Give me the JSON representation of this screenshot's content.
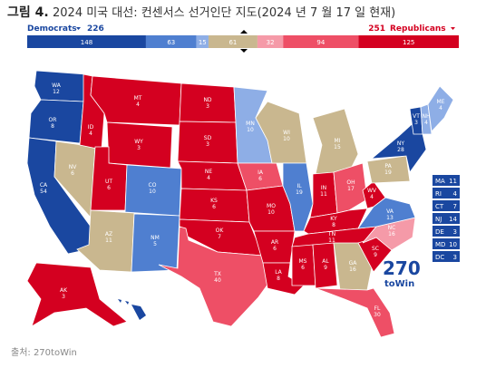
{
  "header": {
    "figure": "그림 4.",
    "title": "2024 미국 대선: 컨센서스 선거인단 지도(2024 년 7 월 17 일 현재)"
  },
  "summary": {
    "dem_label": "Democrats",
    "dem_total": 226,
    "rep_total": 251,
    "rep_label": "Republicans",
    "segments": [
      {
        "value": 148,
        "color": "#1a47a0"
      },
      {
        "value": 63,
        "color": "#4f7fd0"
      },
      {
        "value": 15,
        "color": "#8eaee6"
      },
      {
        "value": 61,
        "color": "#c9b78f"
      },
      {
        "value": 32,
        "color": "#f59aa8"
      },
      {
        "value": 94,
        "color": "#ee4f66"
      },
      {
        "value": 125,
        "color": "#d40020"
      }
    ]
  },
  "states": [
    {
      "abbr": "WA",
      "ev": 12,
      "color": "#1a47a0"
    },
    {
      "abbr": "OR",
      "ev": 8,
      "color": "#1a47a0"
    },
    {
      "abbr": "CA",
      "ev": 54,
      "color": "#1a47a0"
    },
    {
      "abbr": "NV",
      "ev": 6,
      "color": "#c9b78f"
    },
    {
      "abbr": "ID",
      "ev": 4,
      "color": "#d40020"
    },
    {
      "abbr": "MT",
      "ev": 4,
      "color": "#d40020"
    },
    {
      "abbr": "WY",
      "ev": 3,
      "color": "#d40020"
    },
    {
      "abbr": "UT",
      "ev": 6,
      "color": "#d40020"
    },
    {
      "abbr": "AZ",
      "ev": 11,
      "color": "#c9b78f"
    },
    {
      "abbr": "CO",
      "ev": 10,
      "color": "#4f7fd0"
    },
    {
      "abbr": "NM",
      "ev": 5,
      "color": "#4f7fd0"
    },
    {
      "abbr": "ND",
      "ev": 3,
      "color": "#d40020"
    },
    {
      "abbr": "SD",
      "ev": 3,
      "color": "#d40020"
    },
    {
      "abbr": "NE",
      "ev": 4,
      "color": "#d40020"
    },
    {
      "abbr": "KS",
      "ev": 6,
      "color": "#d40020"
    },
    {
      "abbr": "OK",
      "ev": 7,
      "color": "#d40020"
    },
    {
      "abbr": "TX",
      "ev": 40,
      "color": "#ee4f66"
    },
    {
      "abbr": "MN",
      "ev": 10,
      "color": "#8eaee6"
    },
    {
      "abbr": "IA",
      "ev": 6,
      "color": "#ee4f66"
    },
    {
      "abbr": "MO",
      "ev": 10,
      "color": "#d40020"
    },
    {
      "abbr": "AR",
      "ev": 6,
      "color": "#d40020"
    },
    {
      "abbr": "LA",
      "ev": 8,
      "color": "#d40020"
    },
    {
      "abbr": "WI",
      "ev": 10,
      "color": "#c9b78f"
    },
    {
      "abbr": "IL",
      "ev": 19,
      "color": "#4f7fd0"
    },
    {
      "abbr": "MI",
      "ev": 15,
      "color": "#c9b78f"
    },
    {
      "abbr": "IN",
      "ev": 11,
      "color": "#d40020"
    },
    {
      "abbr": "OH",
      "ev": 17,
      "color": "#ee4f66"
    },
    {
      "abbr": "KY",
      "ev": 8,
      "color": "#d40020"
    },
    {
      "abbr": "TN",
      "ev": 11,
      "color": "#d40020"
    },
    {
      "abbr": "MS",
      "ev": 6,
      "color": "#d40020"
    },
    {
      "abbr": "AL",
      "ev": 9,
      "color": "#d40020"
    },
    {
      "abbr": "GA",
      "ev": 16,
      "color": "#c9b78f"
    },
    {
      "abbr": "FL",
      "ev": 30,
      "color": "#ee4f66"
    },
    {
      "abbr": "SC",
      "ev": 9,
      "color": "#d40020"
    },
    {
      "abbr": "NC",
      "ev": 16,
      "color": "#f59aa8"
    },
    {
      "abbr": "VA",
      "ev": 13,
      "color": "#4f7fd0"
    },
    {
      "abbr": "WV",
      "ev": 4,
      "color": "#d40020"
    },
    {
      "abbr": "PA",
      "ev": 19,
      "color": "#c9b78f"
    },
    {
      "abbr": "NY",
      "ev": 28,
      "color": "#1a47a0"
    },
    {
      "abbr": "VT",
      "ev": 3,
      "color": "#1a47a0"
    },
    {
      "abbr": "NH",
      "ev": 4,
      "color": "#8eaee6"
    },
    {
      "abbr": "ME",
      "ev": 4,
      "color": "#8eaee6"
    },
    {
      "abbr": "AK",
      "ev": 3,
      "color": "#d40020"
    }
  ],
  "small_states": [
    {
      "abbr": "MA",
      "ev": 11
    },
    {
      "abbr": "RI",
      "ev": 4
    },
    {
      "abbr": "CT",
      "ev": 7
    },
    {
      "abbr": "NJ",
      "ev": 14
    },
    {
      "abbr": "DE",
      "ev": 3
    },
    {
      "abbr": "MD",
      "ev": 10
    },
    {
      "abbr": "DC",
      "ev": 3
    }
  ],
  "logo": {
    "number": "270",
    "text": "toWin"
  },
  "source": "출처: 270toWin"
}
